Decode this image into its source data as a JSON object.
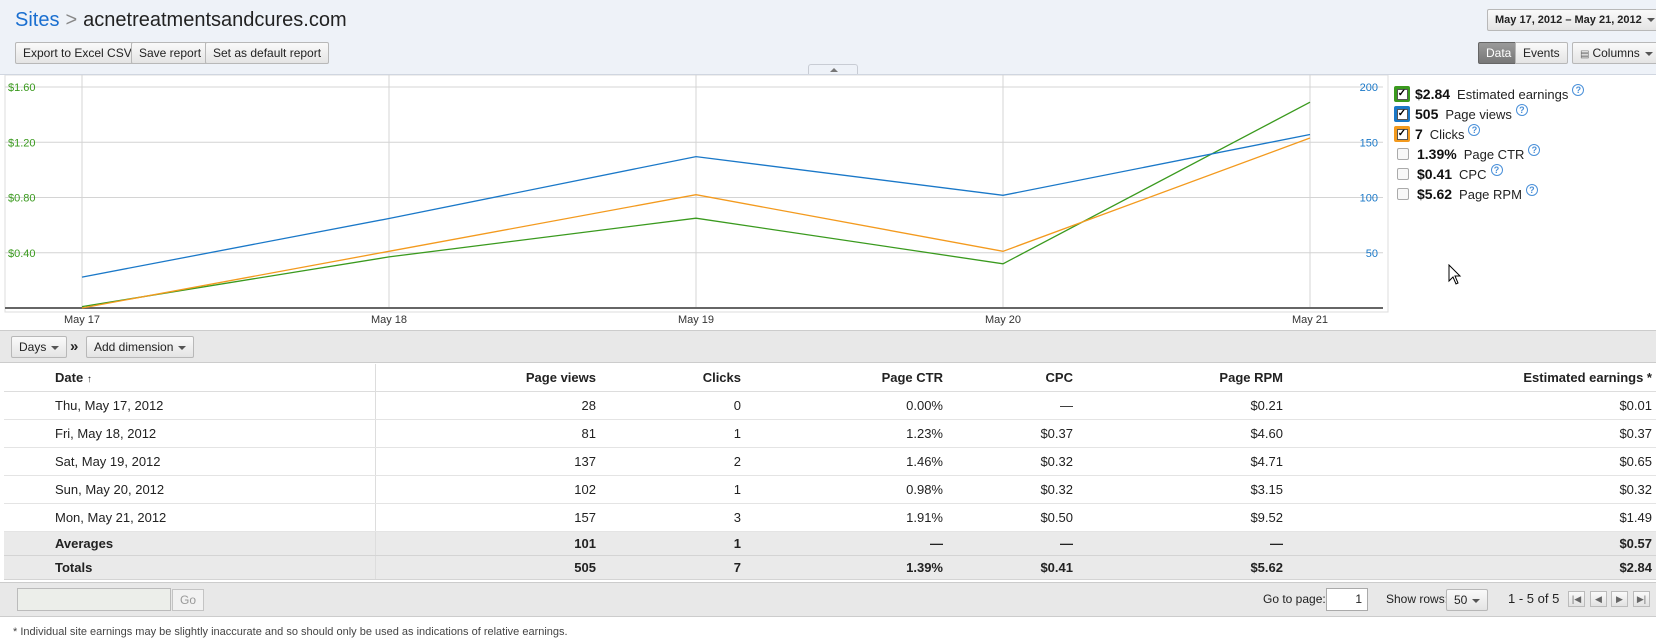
{
  "breadcrumb": {
    "root": "Sites",
    "separator": ">",
    "site": "acnetreatmentsandcures.com"
  },
  "date_range": "May 17, 2012 – May 21, 2012",
  "toolbar": {
    "export": "Export to Excel CSV",
    "save": "Save report",
    "default": "Set as default report"
  },
  "view_toggle": {
    "data": "Data",
    "events": "Events",
    "columns": "Columns"
  },
  "legend": [
    {
      "value": "$2.84",
      "label": "Estimated earnings",
      "checked": true,
      "color": "#3a9a1e"
    },
    {
      "value": "505",
      "label": "Page views",
      "checked": true,
      "color": "#1a78c8"
    },
    {
      "value": "7",
      "label": "Clicks",
      "checked": true,
      "color": "#f39a1e"
    },
    {
      "value": "1.39%",
      "label": "Page CTR",
      "checked": false
    },
    {
      "value": "$0.41",
      "label": "CPC",
      "checked": false
    },
    {
      "value": "$5.62",
      "label": "Page RPM",
      "checked": false
    }
  ],
  "chart_data": {
    "type": "line",
    "x": [
      "May 17",
      "May 18",
      "May 19",
      "May 20",
      "May 21"
    ],
    "y_left_ticks": [
      "$0.40",
      "$0.80",
      "$1.20",
      "$1.60"
    ],
    "y_left_range": [
      0,
      1.6
    ],
    "y_right_ticks": [
      "50",
      "100",
      "150",
      "200"
    ],
    "y_right_range": [
      0,
      200
    ],
    "grid": true,
    "series": [
      {
        "name": "Estimated earnings",
        "axis": "left",
        "color": "#3a9a1e",
        "values": [
          0.01,
          0.37,
          0.65,
          0.32,
          1.49
        ]
      },
      {
        "name": "Page views",
        "axis": "right",
        "color": "#1a78c8",
        "values": [
          28,
          81,
          137,
          102,
          157
        ]
      },
      {
        "name": "Clicks",
        "axis": "clicks",
        "color": "#f39a1e",
        "values": [
          0,
          1,
          2,
          1,
          3
        ]
      }
    ]
  },
  "dimension_bar": {
    "days": "Days",
    "arrow": "»",
    "add": "Add dimension"
  },
  "table": {
    "columns": [
      "Date",
      "Page views",
      "Clicks",
      "Page CTR",
      "CPC",
      "Page RPM",
      "Estimated earnings *"
    ],
    "sort_indicator": "↑",
    "rows": [
      [
        "Thu, May 17, 2012",
        "28",
        "0",
        "0.00%",
        "—",
        "$0.21",
        "$0.01"
      ],
      [
        "Fri, May 18, 2012",
        "81",
        "1",
        "1.23%",
        "$0.37",
        "$4.60",
        "$0.37"
      ],
      [
        "Sat, May 19, 2012",
        "137",
        "2",
        "1.46%",
        "$0.32",
        "$4.71",
        "$0.65"
      ],
      [
        "Sun, May 20, 2012",
        "102",
        "1",
        "0.98%",
        "$0.32",
        "$3.15",
        "$0.32"
      ],
      [
        "Mon, May 21, 2012",
        "157",
        "3",
        "1.91%",
        "$0.50",
        "$9.52",
        "$1.49"
      ]
    ],
    "averages": [
      "Averages",
      "101",
      "1",
      "—",
      "—",
      "—",
      "$0.57"
    ],
    "totals": [
      "Totals",
      "505",
      "7",
      "1.39%",
      "$0.41",
      "$5.62",
      "$2.84"
    ]
  },
  "footer": {
    "go": "Go",
    "goto_label": "Go to page:",
    "page_value": "1",
    "rows_label": "Show rows:",
    "rows_value": "50",
    "range": "1 - 5 of 5"
  },
  "note": "* Individual site earnings may be slightly inaccurate and so should only be used as indications of relative earnings."
}
